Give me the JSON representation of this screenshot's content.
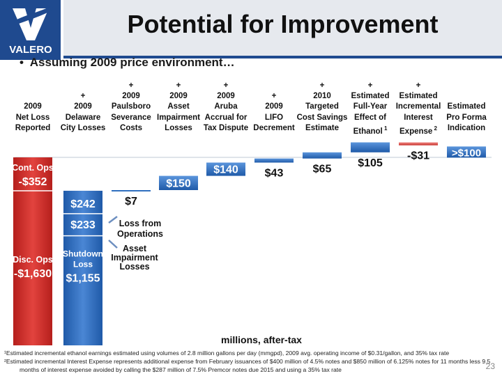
{
  "logo": {
    "text": "VALERO",
    "icon": "valero-v-logo-icon"
  },
  "title": "Potential for Improvement",
  "bullet": "Assuming 2009 price environment…",
  "columns": [
    {
      "lines": [
        "",
        "",
        "2009",
        "Net Loss",
        "Reported"
      ]
    },
    {
      "lines": [
        "",
        "+",
        "2009",
        "Delaware",
        "City Losses"
      ]
    },
    {
      "lines": [
        "+",
        "2009",
        "Paulsboro",
        "Severance",
        "Costs"
      ]
    },
    {
      "lines": [
        "+",
        "2009",
        "Asset",
        "Impairment",
        "Losses"
      ]
    },
    {
      "lines": [
        "+",
        "2009",
        "Aruba",
        "Accrual for",
        "Tax Dispute"
      ]
    },
    {
      "lines": [
        "",
        "+",
        "2009",
        "LIFO",
        "Decrement"
      ]
    },
    {
      "lines": [
        "+",
        "2010",
        "Targeted",
        "Cost Savings",
        "Estimate"
      ]
    },
    {
      "lines": [
        "+",
        "Estimated",
        "Full-Year",
        "Effect of",
        "Ethanol"
      ],
      "sup": "1"
    },
    {
      "lines": [
        "+",
        "Estimated",
        "Incremental",
        "Interest",
        "Expense"
      ],
      "sup": "2"
    },
    {
      "lines": [
        "",
        "",
        "Estimated",
        "Pro Forma",
        "Indication"
      ]
    }
  ],
  "annotations": {
    "loss_ops": [
      "Loss from",
      "Operations"
    ],
    "asset_imp": [
      "Asset",
      "Impairment",
      "Losses"
    ],
    "cont_ops": [
      "Cont. Ops",
      "-$352"
    ],
    "disc_ops": [
      "Disc. Ops",
      "-$1,630"
    ],
    "shutdown": [
      "Shutdown",
      "Loss",
      "$1,155"
    ]
  },
  "x_label": "millions, after-tax",
  "footnotes": [
    "¹Estimated incremental ethanol earnings estimated using volumes of 2.8 million gallons per day (mmgpd), 2009 avg. operating income of $0.31/gallon, and 35% tax rate",
    "²Estimated incremental Interest Expense represents additional expense from February issuances of $400 million of 4.5% notes and $850 million of 6.125% notes for 11 months less  9.5",
    "months of interest expense avoided by calling the $287 million of 7.5% Premcor notes due 2015 and using a 35% tax rate"
  ],
  "page_number": "23",
  "colors": {
    "red": "#d8302c",
    "blue": "#2f6fbf",
    "brand": "#1f4a8f",
    "text": "#111111"
  },
  "chart_data": {
    "type": "bar",
    "subtype": "waterfall",
    "units": "millions, after-tax",
    "categories": [
      "2009 Net Loss Reported",
      "+ 2009 Delaware City Losses",
      "+ 2009 Paulsboro Severance Costs",
      "+ 2009 Asset Impairment Losses",
      "+ 2009 Aruba Accrual for Tax Dispute",
      "+ 2009 LIFO Decrement",
      "+ 2010 Targeted Cost Savings Estimate",
      "+ Estimated Full-Year Effect of Ethanol",
      "+ Estimated Incremental Interest Expense",
      "Estimated Pro Forma Indication"
    ],
    "values": [
      -1982,
      1630,
      7,
      150,
      140,
      43,
      65,
      105,
      -31,
      100
    ],
    "value_labels": [
      "",
      "",
      "$7",
      "$150",
      "$140",
      "$43",
      "$65",
      "$105",
      "-$31",
      ">$100"
    ],
    "segments": {
      "net_loss": {
        "continuing_ops": -352,
        "discontinued_ops": -1630
      },
      "delaware_city": {
        "loss_from_operations": 242,
        "asset_impairment_losses": 233,
        "shutdown_loss": 1155
      }
    },
    "labels": {
      "seg_242": "$242",
      "seg_233": "$233"
    },
    "xlabel": "millions, after-tax",
    "ylabel": ""
  }
}
